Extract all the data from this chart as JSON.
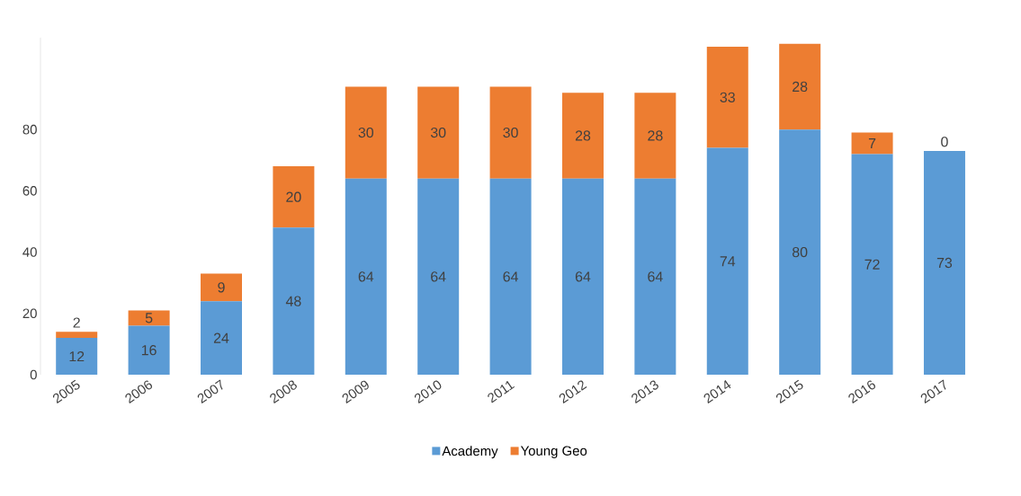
{
  "chart_data": {
    "type": "bar",
    "stacked": true,
    "data_labels": true,
    "legend": "bottom",
    "categories": [
      "2005",
      "2006",
      "2007",
      "2008",
      "2009",
      "2010",
      "2011",
      "2012",
      "2013",
      "2014",
      "2015",
      "2016",
      "2017"
    ],
    "series": [
      {
        "name": "Academy",
        "color": "#5b9bd5",
        "values": [
          12,
          16,
          24,
          48,
          64,
          64,
          64,
          64,
          64,
          74,
          80,
          72,
          73
        ]
      },
      {
        "name": "Young Geo",
        "color": "#ed7d31",
        "values": [
          2,
          5,
          9,
          20,
          30,
          30,
          30,
          28,
          28,
          33,
          28,
          7,
          0
        ]
      }
    ],
    "ylim": [
      0,
      110
    ],
    "yticks": [
      0,
      20,
      40,
      60,
      80
    ]
  }
}
